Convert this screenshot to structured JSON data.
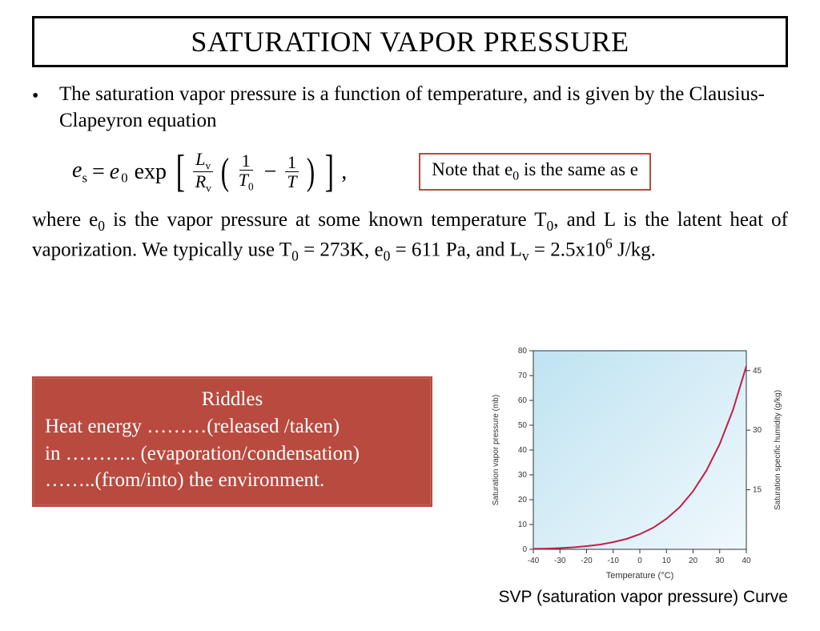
{
  "title": "SATURATION VAPOR PRESSURE",
  "bullet": "•",
  "intro": "The saturation vapor pressure is a function of temperature, and is given by the Clausius-Clapeyron equation",
  "note_html": "Note that e<sub>0</sub> is the same as e",
  "para2_html": "where e<sub>0</sub> is the vapor pressure at some known temperature T<sub>0</sub>, and L is the latent heat of vaporization. We typically use T<sub>0</sub> = 273K, e<sub>0</sub> = 611 Pa, and L<sub>v</sub> = 2.5x10<sup>6</sup> J/kg.",
  "riddles": {
    "title": "Riddles",
    "line1": "Heat energy ………(released /taken)",
    "line2": "in ……….. (evaporation/condensation)",
    "line3": "……..(from/into) the environment."
  },
  "chart": {
    "type": "line",
    "bg_gradient_top": "#bfe3f2",
    "bg_gradient_bottom": "#f0f8fc",
    "line_color": "#c01f4a",
    "axis_color": "#333333",
    "tick_color": "#333333",
    "label_font": "10px Arial",
    "title_left": "Saturation vapor pressure (mb)",
    "title_right": "Saturation specific humidity (g/kg)",
    "title_bottom": "Temperature (°C)",
    "xlim": [
      -40,
      40
    ],
    "xticks": [
      -40,
      -30,
      -20,
      -10,
      0,
      10,
      20,
      30,
      40
    ],
    "ylim_left": [
      0,
      80
    ],
    "yticks_left": [
      0,
      10,
      20,
      30,
      40,
      50,
      60,
      70,
      80
    ],
    "yticks_right": [
      15,
      30,
      45
    ],
    "yticks_right_at_left": [
      24,
      48,
      72
    ],
    "curve": [
      [
        -40,
        0.2
      ],
      [
        -35,
        0.3
      ],
      [
        -30,
        0.5
      ],
      [
        -25,
        0.8
      ],
      [
        -20,
        1.3
      ],
      [
        -15,
        1.9
      ],
      [
        -10,
        2.9
      ],
      [
        -5,
        4.2
      ],
      [
        0,
        6.1
      ],
      [
        5,
        8.7
      ],
      [
        10,
        12.3
      ],
      [
        15,
        17.0
      ],
      [
        20,
        23.4
      ],
      [
        25,
        31.7
      ],
      [
        30,
        42.4
      ],
      [
        35,
        56.2
      ],
      [
        40,
        73.8
      ]
    ],
    "caption": "SVP (saturation vapor pressure) Curve"
  }
}
